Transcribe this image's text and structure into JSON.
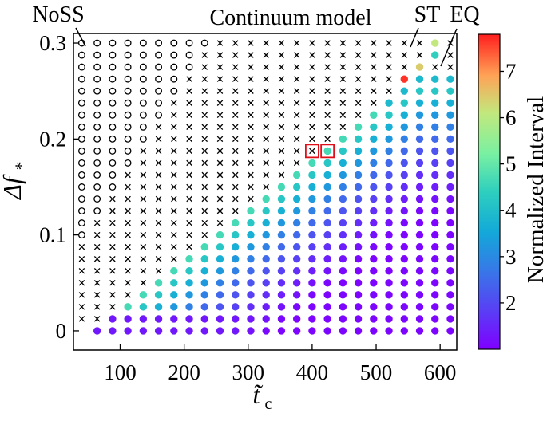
{
  "chart_data": {
    "type": "scatter",
    "title": "Continuum model",
    "xlabel": "t̃",
    "xlabel_sub": "c",
    "ylabel": "Δf",
    "ylabel_sub": "*",
    "xlim": [
      27,
      626
    ],
    "ylim": [
      -0.02,
      0.31
    ],
    "xticks": [
      100,
      200,
      300,
      400,
      500,
      600
    ],
    "yticks": [
      0,
      0.1,
      0.2,
      0.3
    ],
    "ytick_labels": [
      "0",
      "0.1",
      "0.2",
      "0.3"
    ],
    "x_values": [
      40,
      64,
      88,
      112,
      136,
      160,
      184,
      208,
      232,
      256,
      280,
      304,
      328,
      352,
      376,
      400,
      424,
      448,
      472,
      496,
      520,
      544,
      568,
      592,
      616
    ],
    "x_values_note_ok": true,
    "y_step": 0.0125,
    "y_count": 25,
    "colorbar": {
      "label": "Normalized Interval",
      "ticks": [
        2,
        3,
        4,
        5,
        6,
        7
      ],
      "range": [
        1.0,
        7.8
      ],
      "colormap": "rainbow"
    },
    "legend_markers": {
      "circle": "NoSS",
      "cross": "ST",
      "filled": "EQ"
    },
    "annotations": [
      "NoSS",
      "ST",
      "EQ"
    ],
    "highlighted_points": [
      {
        "x": 400,
        "y": 0.1875,
        "marker": "cross"
      },
      {
        "x": 424,
        "y": 0.1875,
        "marker": "filled"
      }
    ],
    "notable_points": [
      {
        "x": 544,
        "y": 0.2625,
        "value": 7.6
      },
      {
        "x": 568,
        "y": 0.275,
        "value": 6.0
      },
      {
        "x": 592,
        "y": 0.3,
        "value": 5.6
      },
      {
        "x": 592,
        "y": 0.2875,
        "value": 4.0
      }
    ]
  }
}
